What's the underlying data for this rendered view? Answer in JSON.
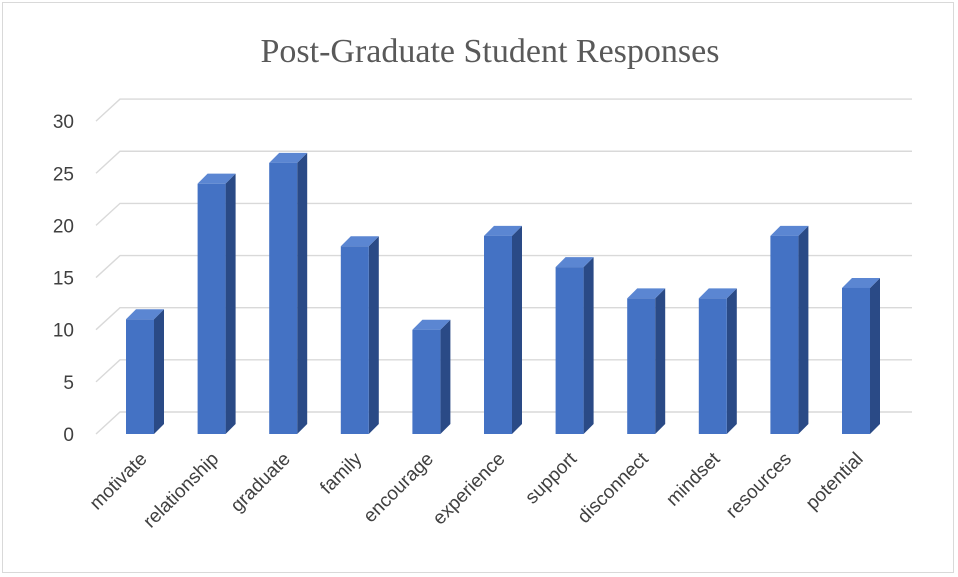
{
  "chart_data": {
    "type": "bar",
    "title": "Post-Graduate Student Responses",
    "categories": [
      "motivate",
      "relationship",
      "graduate",
      "family",
      "encourage",
      "experience",
      "support",
      "disconnect",
      "mindset",
      "resources",
      "potential"
    ],
    "values": [
      11,
      24,
      26,
      18,
      10,
      19,
      16,
      13,
      13,
      19,
      14
    ],
    "y_ticks": [
      "0",
      "5",
      "10",
      "15",
      "20",
      "25",
      "30"
    ],
    "ylim": [
      0,
      30
    ],
    "xlabel": "",
    "ylabel": "",
    "grid": true,
    "style": "3d-column",
    "colors": {
      "front": "#4472c4",
      "side": "#2a4a86",
      "top": "#5b86d2",
      "grid": "#d9d9d9",
      "text": "#404040",
      "title": "#595959"
    }
  }
}
